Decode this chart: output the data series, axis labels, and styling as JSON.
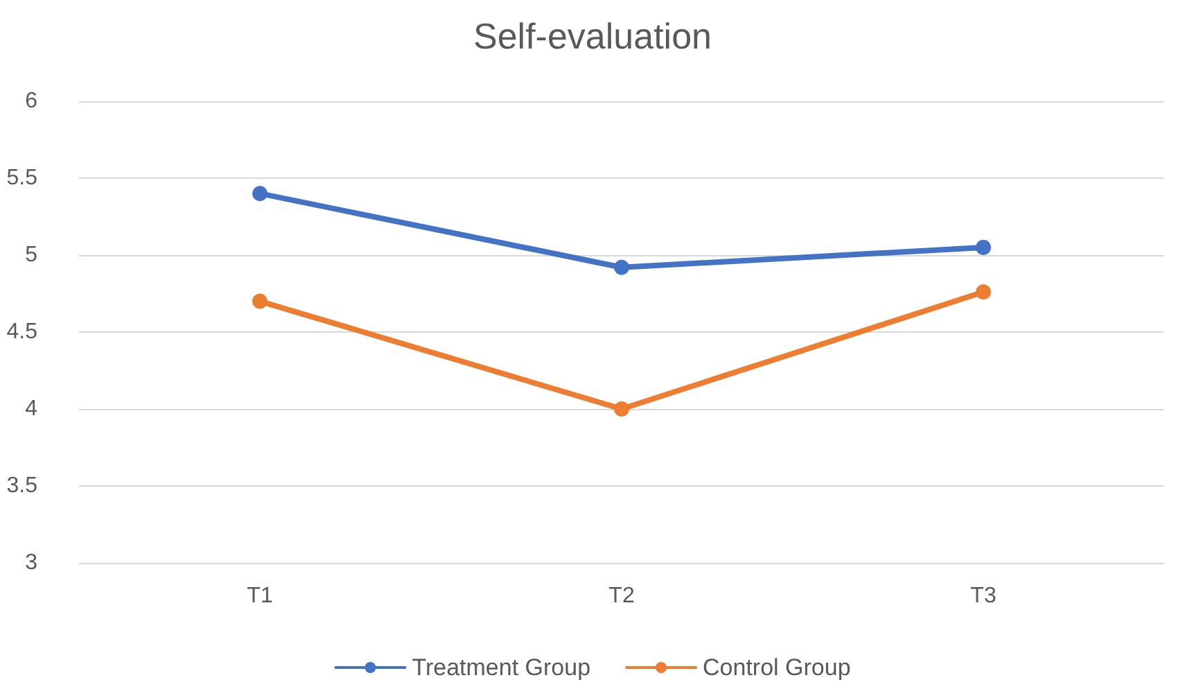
{
  "chart_data": {
    "type": "line",
    "title": "Self-evaluation",
    "categories": [
      "T1",
      "T2",
      "T3"
    ],
    "series": [
      {
        "name": "Treatment Group",
        "color": "#4472c4",
        "values": [
          5.4,
          4.92,
          5.05
        ]
      },
      {
        "name": "Control Group",
        "color": "#ed7d31",
        "values": [
          4.7,
          4.0,
          4.76
        ]
      }
    ],
    "ylim": [
      3,
      6
    ],
    "yticks": [
      3,
      3.5,
      4,
      4.5,
      5,
      5.5,
      6
    ],
    "grid": "y",
    "legend": "bottom",
    "marker": "circle",
    "line_style": "solid"
  }
}
